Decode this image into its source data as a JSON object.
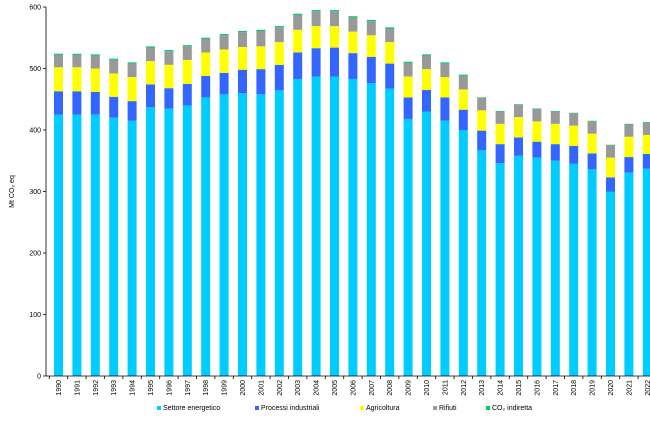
{
  "chart_data": {
    "type": "bar",
    "stacked": true,
    "ylabel": "Mt CO₂ eq",
    "ylim": [
      0,
      600
    ],
    "yticks": [
      0,
      100,
      200,
      300,
      400,
      500,
      600
    ],
    "grid": false,
    "legend_placement": "bottom",
    "categories": [
      "1990",
      "1991",
      "1992",
      "1993",
      "1994",
      "1995",
      "1996",
      "1997",
      "1998",
      "1999",
      "2000",
      "2001",
      "2002",
      "2003",
      "2004",
      "2005",
      "2006",
      "2007",
      "2008",
      "2009",
      "2010",
      "2011",
      "2012",
      "2013",
      "2014",
      "2015",
      "2016",
      "2017",
      "2018",
      "2019",
      "2020",
      "2021",
      "2022"
    ],
    "series": [
      {
        "name": "Settore energetico",
        "color": "#00ccff",
        "values": [
          425,
          425,
          425,
          420,
          415,
          437,
          435,
          440,
          453,
          458,
          460,
          458,
          465,
          483,
          487,
          487,
          483,
          476,
          467,
          418,
          430,
          415,
          400,
          367,
          346,
          358,
          355,
          350,
          345,
          336,
          300,
          331,
          337
        ]
      },
      {
        "name": "Processi industriali",
        "color": "#3366ff",
        "values": [
          38,
          38,
          37,
          34,
          32,
          37,
          33,
          35,
          35,
          35,
          38,
          41,
          41,
          43,
          46,
          47,
          42,
          43,
          41,
          35,
          35,
          38,
          33,
          32,
          31,
          30,
          26,
          27,
          29,
          26,
          23,
          25,
          24
        ]
      },
      {
        "name": "Agricoltura",
        "color": "#ffff00",
        "values": [
          39,
          39,
          38,
          38,
          39,
          38,
          38,
          39,
          38,
          38,
          37,
          37,
          37,
          37,
          36,
          35,
          35,
          35,
          35,
          34,
          34,
          33,
          33,
          33,
          33,
          33,
          33,
          33,
          33,
          32,
          32,
          33,
          31
        ]
      },
      {
        "name": "Rifiuti",
        "color": "#999999",
        "values": [
          20,
          20,
          21,
          22,
          22,
          22,
          22,
          22,
          22,
          23,
          24,
          25,
          24,
          24,
          24,
          24,
          23,
          23,
          22,
          22,
          22,
          22,
          22,
          20,
          20,
          20,
          20,
          20,
          20,
          20,
          20,
          20,
          20
        ]
      },
      {
        "name": "CO₂ indiretta",
        "color": "#00cc66",
        "values": [
          2,
          2,
          2,
          2,
          2,
          2,
          2,
          2,
          2,
          2,
          2,
          2,
          2,
          2,
          2,
          2,
          2,
          2,
          2,
          2,
          2,
          2,
          2,
          1,
          1,
          1,
          1,
          1,
          1,
          1,
          1,
          1,
          1
        ]
      }
    ]
  }
}
